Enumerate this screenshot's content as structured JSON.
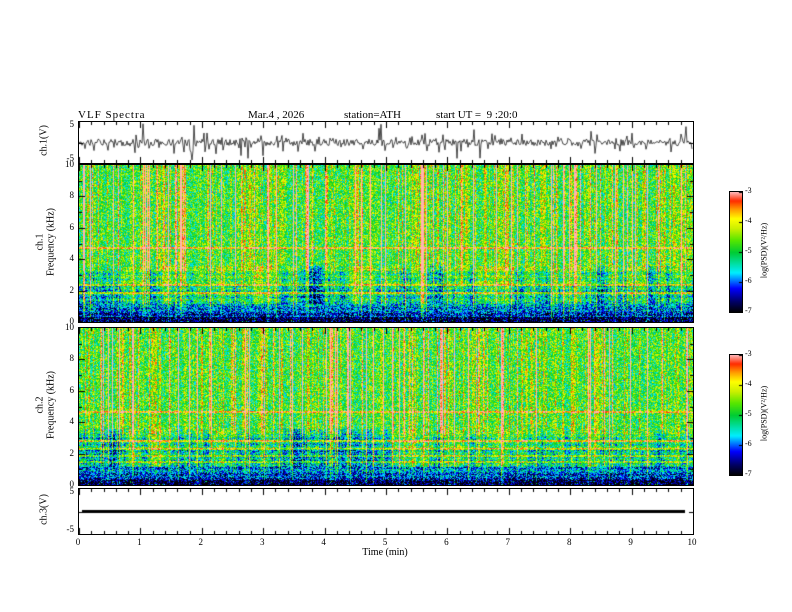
{
  "header": {
    "title": "VLF Spectra",
    "date": "Mar.4 , 2026",
    "station": "station=ATH",
    "start_ut": "start UT =  9 :20:0"
  },
  "axes": {
    "time_label": "Time (min)",
    "time_ticks": [
      "0",
      "1",
      "2",
      "3",
      "4",
      "5",
      "6",
      "7",
      "8",
      "9",
      "10"
    ],
    "freq_label": "Frequency (kHz)",
    "freq_ticks": [
      "10",
      "8",
      "6",
      "4",
      "2",
      "0"
    ],
    "wave_ticks": [
      "5",
      "-5"
    ],
    "ch1_wave_label": "ch.1(V)",
    "ch3_wave_label": "ch.3(V)",
    "spec1_label_ch": "ch.1",
    "spec2_label_ch": "ch.2"
  },
  "colorbar": {
    "label": "log(PSD)(V²/Hz)",
    "ticks": [
      "-3",
      "-4",
      "-5",
      "-6",
      "-7"
    ],
    "range": [
      -7,
      -3
    ],
    "colors": [
      {
        "t": 0.0,
        "c": "#000000"
      },
      {
        "t": 0.09,
        "c": "#000066"
      },
      {
        "t": 0.2,
        "c": "#0000ff"
      },
      {
        "t": 0.33,
        "c": "#00eeff"
      },
      {
        "t": 0.5,
        "c": "#00cc33"
      },
      {
        "t": 0.6,
        "c": "#55e600"
      },
      {
        "t": 0.7,
        "c": "#ccf000"
      },
      {
        "t": 0.78,
        "c": "#ffff00"
      },
      {
        "t": 0.86,
        "c": "#ff9900"
      },
      {
        "t": 0.93,
        "c": "#ff2a00"
      },
      {
        "t": 1.0,
        "c": "#ffb3b3"
      }
    ]
  },
  "chart_data": [
    {
      "type": "line",
      "name": "ch1-waveform",
      "ylabel": "ch.1(V)",
      "xlabel": "Time (min)",
      "xlim": [
        0,
        10
      ],
      "ylim": [
        -5,
        5
      ],
      "seed": 11,
      "description": "Dense broadband noise around 0 V (about ±1 V) with frequent impulsive spikes reaching roughly ±5 V across the full 10 minutes"
    },
    {
      "type": "heatmap",
      "name": "ch1-spectrogram",
      "ylabel": "Frequency (kHz)",
      "xlabel": "Time (min)",
      "xlim": [
        0,
        10
      ],
      "ylim": [
        0,
        10
      ],
      "zlim": [
        -7,
        -3
      ],
      "zlabel": "log(PSD)(V²/Hz)",
      "legend_position": "right-colorbar",
      "grid": false,
      "seed": 21,
      "hum_lines_khz": [
        4.75,
        2.4,
        1.9
      ],
      "description": "Speckled VLF spectrogram: green/yellow background above 3 kHz crossed by many narrow vertical red burst striations over the whole record, blue/cyan band between about 1 and 3 kHz, nearly black below 0.4 kHz"
    },
    {
      "type": "heatmap",
      "name": "ch2-spectrogram",
      "ylabel": "Frequency (kHz)",
      "xlabel": "Time (min)",
      "xlim": [
        0,
        10
      ],
      "ylim": [
        0,
        10
      ],
      "zlim": [
        -7,
        -3
      ],
      "zlabel": "log(PSD)(V²/Hz)",
      "legend_position": "right-colorbar",
      "grid": false,
      "seed": 42,
      "hum_lines_khz": [
        4.7,
        2.85,
        2.35,
        1.9,
        1.5
      ],
      "description": "Similar speckled spectrogram with vertical red/yellow bursts, plus persistent narrowband orange horizontal lines near 4.7 kHz and between 1.5 and 3 kHz; nearly black below 0.4 kHz"
    },
    {
      "type": "line",
      "name": "ch3-waveform",
      "ylabel": "ch.3(V)",
      "xlabel": "Time (min)",
      "xlim": [
        0,
        10
      ],
      "ylim": [
        -5,
        5
      ],
      "seed": 3,
      "flat_value": 0,
      "description": "Flat constant thick black trace at 0 V (no signal on channel 3)"
    }
  ]
}
